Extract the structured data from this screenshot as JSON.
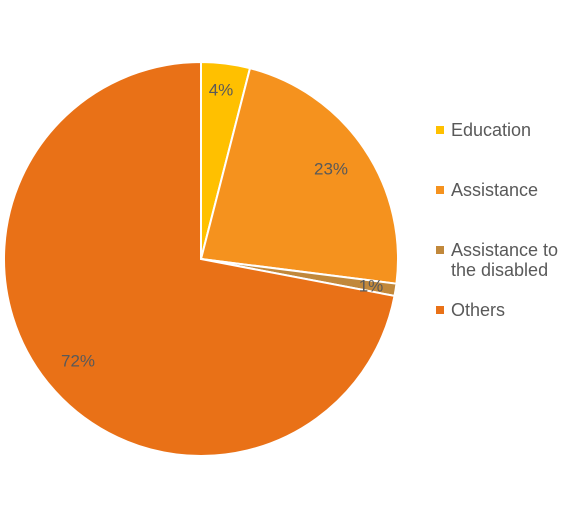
{
  "chart_data": {
    "type": "pie",
    "title": "",
    "start_angle_deg": 0,
    "direction": "clockwise",
    "slices": [
      {
        "label": "Education",
        "value": 4,
        "display": "4%",
        "color": "#FFC000"
      },
      {
        "label": "Assistance",
        "value": 23,
        "display": "23%",
        "color": "#F5921E"
      },
      {
        "label": "Assistance to the disabled",
        "value": 1,
        "display": "1%",
        "color": "#C1883B"
      },
      {
        "label": "Others",
        "value": 72,
        "display": "72%",
        "color": "#E97117"
      }
    ],
    "label_color": "#595959",
    "legend_position": "right"
  },
  "legend": {
    "items": [
      {
        "text": "Education",
        "color": "#FFC000"
      },
      {
        "text": "Assistance",
        "color": "#F5921E"
      },
      {
        "text": "Assistance to the disabled",
        "color": "#C1883B"
      },
      {
        "text": "Others",
        "color": "#E97117"
      }
    ]
  }
}
